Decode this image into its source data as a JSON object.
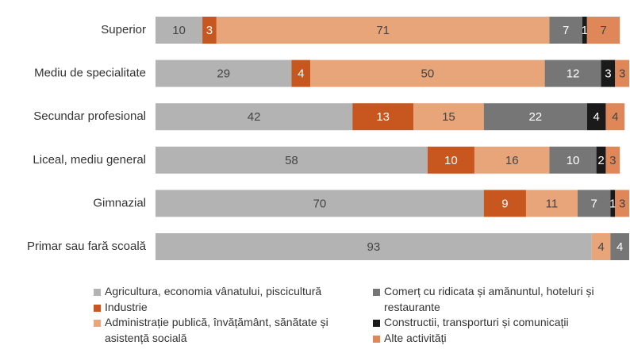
{
  "chart_data": {
    "type": "stacked-bar-horizontal",
    "categories": [
      "Superior",
      "Mediu de specialitate",
      "Secundar profesional",
      "Liceal, mediu general",
      "Gimnazial",
      "Primar sau fară scoală"
    ],
    "series": [
      {
        "name": "Agricultura, economia vânatului, piscicultură",
        "color": "#b3b3b3",
        "values": [
          10,
          29,
          42,
          58,
          70,
          93
        ]
      },
      {
        "name": "Industrie",
        "color": "#c8561f",
        "values": [
          3,
          4,
          13,
          10,
          9,
          null
        ]
      },
      {
        "name": "Administrație publică, învățământ, sănătate și asistență socială",
        "color": "#e8a57a",
        "values": [
          71,
          50,
          15,
          16,
          11,
          4
        ]
      },
      {
        "name": "Comerț cu ridicata și amănuntul, hoteluri și restaurante",
        "color": "#767676",
        "values": [
          7,
          12,
          22,
          10,
          7,
          4
        ]
      },
      {
        "name": "Constructii, transporturi și comunicații",
        "color": "#1a1a1a",
        "values": [
          1,
          3,
          4,
          2,
          1,
          null
        ]
      },
      {
        "name": "Alte activități",
        "color": "#e0875a",
        "values": [
          7,
          3,
          4,
          3,
          3,
          null
        ]
      }
    ]
  }
}
